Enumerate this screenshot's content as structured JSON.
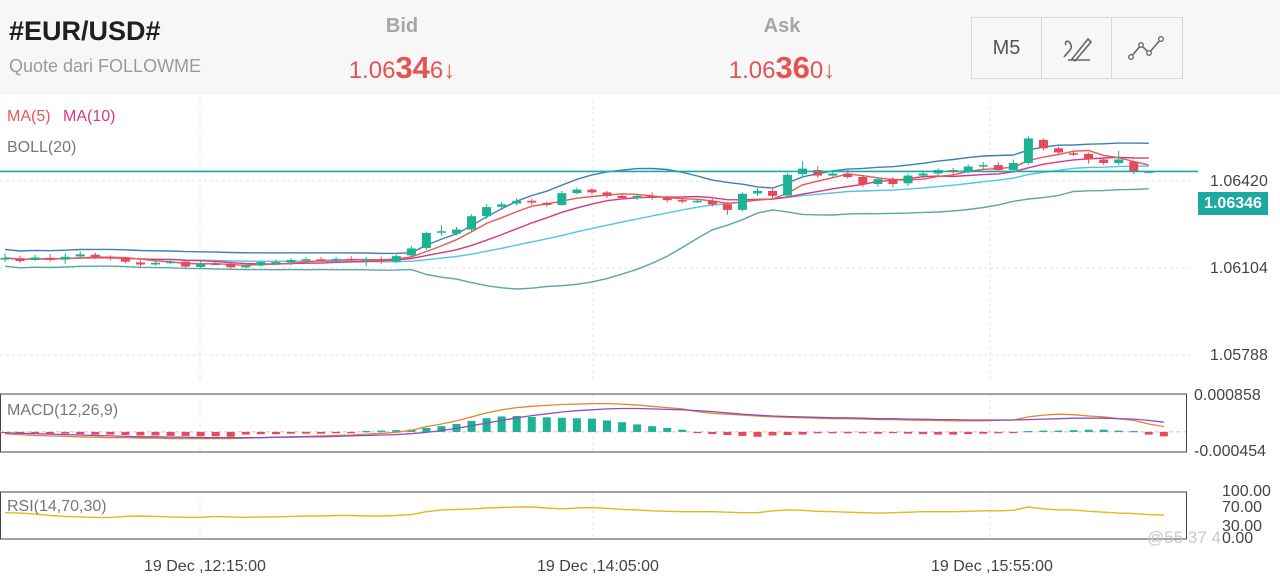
{
  "header": {
    "symbol": "#EUR/USD#",
    "source": "Quote dari FOLLOWME",
    "bid": {
      "label": "Bid",
      "prefix": "1.06",
      "big": "34",
      "suffix": "6",
      "arrow": "↓"
    },
    "ask": {
      "label": "Ask",
      "prefix": "1.06",
      "big": "36",
      "suffix": "0",
      "arrow": "↓"
    }
  },
  "toolbar": {
    "timeframe": "M5",
    "draw_icon": "pen-brush-icon",
    "indicator_icon": "line-chart-icon"
  },
  "main_panel": {
    "indicators": [
      "MA(5)",
      "MA(10)",
      "BOLL(20)"
    ],
    "price_ticks": [
      "1.06420",
      "1.06104",
      "1.05788"
    ],
    "current_price": "1.06346"
  },
  "macd_panel": {
    "label": "MACD(12,26,9)",
    "ticks": [
      "0.000858",
      "-0.000454"
    ]
  },
  "rsi_panel": {
    "label": "RSI(14,70,30)",
    "ticks": [
      "100.00",
      "70.00",
      "30.00",
      "0.00"
    ]
  },
  "time_axis": [
    "19 Dec ,12:15:00",
    "19 Dec ,14:05:00",
    "19 Dec ,15:55:00"
  ],
  "watermark": "@55 37 4",
  "colors": {
    "up": "#1bb394",
    "down": "#e64a5a",
    "ma5": "#ea5656",
    "ma10": "#d63a7e",
    "boll_upper": "#3d7fb5",
    "boll_mid": "#56c3e6",
    "boll_lower": "#5aa7aa",
    "macd_dif": "#e6832d",
    "macd_dea": "#8a4fc8",
    "rsi": "#e4b81b",
    "price_line": "#1ba9a2"
  },
  "chart_data": [
    {
      "type": "candlestick",
      "title": "#EUR/USD#",
      "x_ticks": [
        "19 Dec ,12:15:00",
        "19 Dec ,14:05:00",
        "19 Dec ,15:55:00"
      ],
      "ylim": [
        1.0575,
        1.0655
      ],
      "y_ticks": [
        1.0642,
        1.06104,
        1.05788
      ],
      "last_price": 1.06346,
      "candles": [
        [
          1.06094,
          1.06099,
          1.06112,
          1.06088
        ],
        [
          1.06098,
          1.0609,
          1.06105,
          1.06085
        ],
        [
          1.06093,
          1.061,
          1.06108,
          1.0609
        ],
        [
          1.06099,
          1.06093,
          1.0611,
          1.06088
        ],
        [
          1.06094,
          1.06102,
          1.06112,
          1.06082
        ],
        [
          1.06103,
          1.06109,
          1.06118,
          1.06098
        ],
        [
          1.06108,
          1.06102,
          1.06114,
          1.06096
        ],
        [
          1.06101,
          1.06098,
          1.06106,
          1.06092
        ],
        [
          1.06097,
          1.06088,
          1.06101,
          1.06083
        ],
        [
          1.06086,
          1.0608,
          1.06092,
          1.06073
        ],
        [
          1.0608,
          1.06085,
          1.06092,
          1.06077
        ],
        [
          1.06085,
          1.06088,
          1.06094,
          1.06082
        ],
        [
          1.06088,
          1.06074,
          1.06094,
          1.06068
        ],
        [
          1.06073,
          1.06083,
          1.06089,
          1.0607
        ],
        [
          1.06083,
          1.06082,
          1.06091,
          1.06078
        ],
        [
          1.06082,
          1.06072,
          1.06089,
          1.06068
        ],
        [
          1.06072,
          1.06077,
          1.06084,
          1.06069
        ],
        [
          1.06077,
          1.06087,
          1.06091,
          1.06074
        ],
        [
          1.06087,
          1.06087,
          1.06094,
          1.06082
        ],
        [
          1.06086,
          1.06093,
          1.06098,
          1.06078
        ],
        [
          1.06093,
          1.06095,
          1.06101,
          1.0609
        ],
        [
          1.06095,
          1.06092,
          1.06101,
          1.06088
        ],
        [
          1.06092,
          1.06096,
          1.06102,
          1.06089
        ],
        [
          1.06096,
          1.06093,
          1.06104,
          1.06089
        ],
        [
          1.06093,
          1.06095,
          1.06101,
          1.06075
        ],
        [
          1.06095,
          1.0609,
          1.06103,
          1.06082
        ],
        [
          1.06088,
          1.06104,
          1.06113,
          1.06084
        ],
        [
          1.06106,
          1.06126,
          1.06133,
          1.06102
        ],
        [
          1.06127,
          1.0617,
          1.06174,
          1.06122
        ],
        [
          1.06172,
          1.06175,
          1.06192,
          1.06162
        ],
        [
          1.06168,
          1.0618,
          1.06188,
          1.06163
        ],
        [
          1.0618,
          1.06218,
          1.06224,
          1.06174
        ],
        [
          1.06218,
          1.06244,
          1.06252,
          1.0621
        ],
        [
          1.06245,
          1.06252,
          1.06258,
          1.0624
        ],
        [
          1.06254,
          1.06262,
          1.0627,
          1.06248
        ],
        [
          1.06262,
          1.06257,
          1.06268,
          1.0625
        ],
        [
          1.06256,
          1.0625,
          1.0626,
          1.06245
        ],
        [
          1.0625,
          1.06284,
          1.0629,
          1.06248
        ],
        [
          1.06284,
          1.06294,
          1.063,
          1.0628
        ],
        [
          1.06294,
          1.06286,
          1.06298,
          1.0628
        ],
        [
          1.06286,
          1.06276,
          1.0629,
          1.0627
        ],
        [
          1.06276,
          1.0627,
          1.06282,
          1.06268
        ],
        [
          1.0627,
          1.06276,
          1.0628,
          1.06264
        ],
        [
          1.06276,
          1.0627,
          1.06286,
          1.06265
        ],
        [
          1.0627,
          1.06264,
          1.06276,
          1.06258
        ],
        [
          1.06264,
          1.0626,
          1.0627,
          1.06255
        ],
        [
          1.0626,
          1.06262,
          1.06268,
          1.06256
        ],
        [
          1.06262,
          1.06252,
          1.06268,
          1.06246
        ],
        [
          1.06252,
          1.06236,
          1.06258,
          1.06222
        ],
        [
          1.06236,
          1.06282,
          1.06286,
          1.06232
        ],
        [
          1.06283,
          1.0629,
          1.06298,
          1.06276
        ],
        [
          1.0629,
          1.06276,
          1.06295,
          1.0627
        ],
        [
          1.06277,
          1.06336,
          1.06342,
          1.06272
        ],
        [
          1.06338,
          1.06354,
          1.06375,
          1.0633
        ],
        [
          1.0635,
          1.06334,
          1.0636,
          1.06328
        ],
        [
          1.06334,
          1.0634,
          1.0635,
          1.06328
        ],
        [
          1.0634,
          1.0633,
          1.0635,
          1.06325
        ],
        [
          1.0633,
          1.0631,
          1.06336,
          1.06302
        ],
        [
          1.0631,
          1.06324,
          1.0633,
          1.06302
        ],
        [
          1.06324,
          1.0631,
          1.0633,
          1.063
        ],
        [
          1.06312,
          1.06334,
          1.0634,
          1.06305
        ],
        [
          1.06334,
          1.0634,
          1.06346,
          1.06326
        ],
        [
          1.0634,
          1.0635,
          1.06355,
          1.06334
        ],
        [
          1.0635,
          1.06346,
          1.06356,
          1.06336
        ],
        [
          1.06346,
          1.0636,
          1.06366,
          1.0634
        ],
        [
          1.0636,
          1.06364,
          1.06373,
          1.06352
        ],
        [
          1.06364,
          1.0635,
          1.06372,
          1.06345
        ],
        [
          1.0635,
          1.0637,
          1.0638,
          1.06346
        ],
        [
          1.0637,
          1.0644,
          1.06446,
          1.06365
        ],
        [
          1.06436,
          1.06412,
          1.0644,
          1.06406
        ],
        [
          1.06412,
          1.064,
          1.06416,
          1.06396
        ],
        [
          1.06398,
          1.06396,
          1.06406,
          1.0639
        ],
        [
          1.06396,
          1.0638,
          1.064,
          1.06368
        ],
        [
          1.0638,
          1.0637,
          1.06386,
          1.06364
        ],
        [
          1.0637,
          1.0638,
          1.06405,
          1.06364
        ],
        [
          1.06374,
          1.06346,
          1.06376,
          1.06338
        ],
        [
          1.06346,
          1.06346,
          1.06348,
          1.0634
        ]
      ]
    },
    {
      "type": "bar",
      "title": "MACD(12,26,9)",
      "ylim": [
        -0.000454,
        0.000858
      ],
      "values": [
        -2e-05,
        -2e-05,
        -3e-05,
        -4e-05,
        -4e-05,
        -5e-05,
        -6e-05,
        -6e-05,
        -7e-05,
        -8e-05,
        -8e-05,
        -9e-05,
        -9e-05,
        -0.0001,
        -0.0001,
        -0.00011,
        -6e-05,
        -5e-05,
        -5e-05,
        -4e-05,
        -4e-05,
        -4e-05,
        -3e-05,
        -3e-05,
        2e-05,
        3e-05,
        4e-05,
        5e-05,
        9e-05,
        0.00013,
        0.00018,
        0.00025,
        0.00031,
        0.00035,
        0.00036,
        0.00034,
        0.00033,
        0.00032,
        0.00031,
        0.0003,
        0.00026,
        0.00022,
        0.00017,
        0.00013,
        9e-05,
        5e-05,
        -2e-05,
        -5e-05,
        -7e-05,
        -9e-05,
        -0.00011,
        -8e-05,
        -7e-05,
        -6e-05,
        -3e-05,
        -3e-05,
        -3e-05,
        -3e-05,
        -4e-05,
        -2e-05,
        -4e-05,
        -5e-05,
        -6e-05,
        -6e-05,
        -5e-05,
        -4e-05,
        -3e-05,
        -2e-05,
        2e-05,
        3e-05,
        3e-05,
        4e-05,
        5e-05,
        5e-05,
        3e-05,
        2e-05,
        -6e-05,
        -0.0001
      ],
      "series": [
        {
          "name": "DIF",
          "values": [
            -4e-05,
            -6e-05,
            -8e-05,
            -9e-05,
            -0.0001,
            -0.00011,
            -0.00012,
            -0.00013,
            -0.00013,
            -0.00014,
            -0.00014,
            -0.00015,
            -0.00015,
            -0.00015,
            -0.00015,
            -0.00015,
            -0.00014,
            -0.00013,
            -0.00012,
            -0.00011,
            -0.0001,
            -9e-05,
            -8e-05,
            -7e-05,
            -5e-05,
            -3e-05,
            -1e-05,
            4e-05,
            0.00012,
            0.00018,
            0.00025,
            0.00034,
            0.00043,
            0.0005,
            0.00055,
            0.00058,
            0.0006,
            0.00062,
            0.00063,
            0.00064,
            0.00064,
            0.00063,
            0.00061,
            0.00058,
            0.00055,
            0.00052,
            0.00046,
            0.00042,
            0.0004,
            0.00038,
            0.00036,
            0.00034,
            0.00033,
            0.00032,
            0.00031,
            0.0003,
            0.0003,
            0.00029,
            0.00028,
            0.00028,
            0.00027,
            0.00026,
            0.00026,
            0.00025,
            0.00025,
            0.00025,
            0.00026,
            0.00027,
            0.00034,
            0.00038,
            0.0004,
            0.00039,
            0.00036,
            0.00034,
            0.0003,
            0.00026,
            0.00018,
            0.00012
          ]
        },
        {
          "name": "DEA",
          "values": [
            -2e-05,
            -3e-05,
            -4e-05,
            -5e-05,
            -6e-05,
            -7e-05,
            -8e-05,
            -9e-05,
            -0.0001,
            -0.00011,
            -0.00011,
            -0.00012,
            -0.00012,
            -0.00013,
            -0.00013,
            -0.00013,
            -0.00013,
            -0.00013,
            -0.00012,
            -0.00012,
            -0.00011,
            -0.00011,
            -0.0001,
            -9e-05,
            -8e-05,
            -7e-05,
            -6e-05,
            -4e-05,
            -1e-05,
            3e-05,
            8e-05,
            0.00014,
            0.0002,
            0.00026,
            0.00032,
            0.00037,
            0.00041,
            0.00045,
            0.00048,
            0.0005,
            0.00052,
            0.00053,
            0.00053,
            0.00052,
            0.00051,
            0.0005,
            0.00048,
            0.00046,
            0.00043,
            0.0004,
            0.00038,
            0.00036,
            0.00035,
            0.00034,
            0.00033,
            0.00032,
            0.00032,
            0.00031,
            0.0003,
            0.0003,
            0.00029,
            0.00029,
            0.00028,
            0.00028,
            0.00027,
            0.00027,
            0.00027,
            0.00027,
            0.00028,
            0.00029,
            0.0003,
            0.00031,
            0.00031,
            0.00031,
            0.0003,
            0.00029,
            0.00026,
            0.00022
          ]
        }
      ]
    },
    {
      "type": "line",
      "title": "RSI(14,70,30)",
      "ylim": [
        0,
        100
      ],
      "y_ticks": [
        100,
        70,
        30,
        0
      ],
      "series": [
        {
          "name": "RSI",
          "values": [
            56,
            55,
            53,
            50,
            48,
            47,
            46,
            46,
            48,
            49,
            48,
            47,
            46,
            46,
            48,
            47,
            46,
            47,
            47,
            48,
            49,
            49,
            50,
            50,
            49,
            49,
            50,
            52,
            58,
            62,
            63,
            64,
            66,
            67,
            68,
            68,
            66,
            64,
            66,
            67,
            65,
            63,
            62,
            60,
            59,
            58,
            58,
            58,
            57,
            56,
            56,
            60,
            62,
            61,
            59,
            58,
            57,
            56,
            55,
            56,
            57,
            58,
            58,
            58,
            59,
            60,
            60,
            61,
            68,
            64,
            62,
            62,
            59,
            57,
            55,
            54,
            52,
            51
          ]
        }
      ]
    }
  ]
}
